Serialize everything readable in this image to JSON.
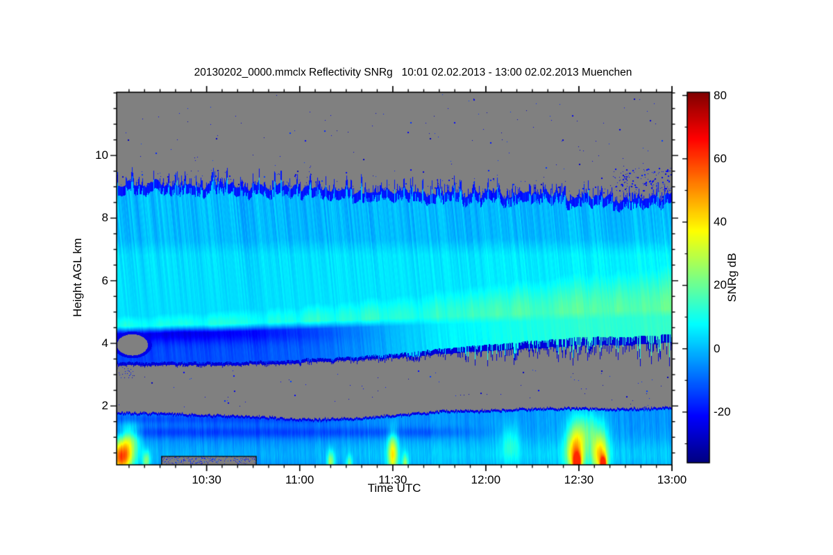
{
  "page": {
    "background": "#ffffff"
  },
  "chart_data": {
    "type": "heatmap",
    "title": "20130202_0000.mmclx Reflectivity SNRg   10:01 02.02.2013 - 13:00 02.02.2013 Muenchen",
    "file_label": "20130202_0000.mmclx",
    "quantity_label": "Reflectivity SNRg",
    "time_start_label": "10:01",
    "time_end_label": "13:00",
    "date_label": "02.02.2013",
    "site_label": "Muenchen",
    "xlabel": "Time UTC",
    "ylabel": "Height AGL km",
    "colorbar_label": "SNRg dB",
    "x_range_minutes": [
      0,
      179
    ],
    "x_ticks": [
      {
        "label": "10:30",
        "t": 29
      },
      {
        "label": "11:00",
        "t": 59
      },
      {
        "label": "11:30",
        "t": 89
      },
      {
        "label": "12:00",
        "t": 119
      },
      {
        "label": "12:30",
        "t": 149
      },
      {
        "label": "13:00",
        "t": 179
      }
    ],
    "x_minor_step_minutes": 5,
    "x_minor_offset_minutes": 4,
    "y_range_km": [
      0.12,
      12.02
    ],
    "y_ticks": [
      {
        "label": "2",
        "v": 2
      },
      {
        "label": "4",
        "v": 4
      },
      {
        "label": "6",
        "v": 6
      },
      {
        "label": "8",
        "v": 8
      },
      {
        "label": "10",
        "v": 10
      }
    ],
    "y_minor_step_km": 0.5,
    "value_range_db": [
      -36,
      81
    ],
    "colorbar_ticks": [
      {
        "label": "80",
        "v": 80
      },
      {
        "label": "60",
        "v": 60
      },
      {
        "label": "40",
        "v": 40
      },
      {
        "label": "20",
        "v": 20
      },
      {
        "label": "0",
        "v": 0
      },
      {
        "label": "-20",
        "v": -20
      }
    ],
    "colorbar_minor_step_db": 10,
    "colormap": "jet",
    "nodata_color": "#808080",
    "frame_color": "#000000",
    "upper_layer": {
      "times": [
        0,
        10,
        20,
        30,
        45,
        60,
        75,
        90,
        105,
        120,
        135,
        150,
        165,
        179
      ],
      "base_km": [
        3.3,
        3.28,
        3.3,
        3.3,
        3.32,
        3.38,
        3.45,
        3.55,
        3.65,
        3.75,
        3.85,
        3.95,
        3.95,
        4.0
      ],
      "base_ragged_km": [
        0.06,
        0.06,
        0.06,
        0.06,
        0.06,
        0.08,
        0.08,
        0.12,
        0.25,
        0.35,
        0.45,
        0.5,
        0.5,
        0.55
      ],
      "top_km": [
        9.05,
        9.1,
        9.05,
        9.0,
        9.0,
        8.95,
        8.9,
        8.85,
        8.8,
        8.8,
        8.75,
        8.7,
        8.6,
        8.7
      ],
      "top_jagged_km": 0.42,
      "base_zone_db": [
        -14,
        -14,
        -13,
        -13,
        -12,
        -10,
        -6,
        0,
        6,
        9,
        11,
        13,
        13,
        14
      ],
      "dark_wedge_db": [
        -9,
        -10,
        -11,
        -10,
        -8,
        -5,
        -2,
        0,
        0,
        0,
        0,
        0,
        0,
        0
      ],
      "dark_wedge_center_km": 4.32,
      "dark_wedge_width_km": 0.3,
      "band_db": [
        9,
        9,
        9,
        10,
        10,
        11,
        12,
        12,
        13,
        15,
        16,
        17,
        18,
        19
      ],
      "band_center_km": [
        4.55,
        4.55,
        4.6,
        4.6,
        4.65,
        4.7,
        4.75,
        4.8,
        4.85,
        4.9,
        4.95,
        5.0,
        5.05,
        5.1
      ],
      "band_width_km": [
        0.35,
        0.38,
        0.4,
        0.42,
        0.5,
        0.55,
        0.65,
        0.75,
        0.9,
        1.0,
        1.1,
        1.2,
        1.3,
        1.4
      ],
      "mid_db": [
        4,
        4,
        4,
        4,
        4,
        5,
        5,
        5,
        5,
        6,
        6,
        6,
        7,
        7
      ],
      "fade_start_km": 6.8,
      "top_db": -21,
      "base_edge_db": -26
    },
    "lower_layer": {
      "times": [
        0,
        15,
        30,
        45,
        60,
        75,
        90,
        105,
        120,
        135,
        150,
        165,
        179
      ],
      "top_km": [
        1.8,
        1.78,
        1.72,
        1.68,
        1.58,
        1.6,
        1.72,
        1.85,
        1.88,
        1.92,
        1.95,
        1.92,
        1.97
      ],
      "background_db": [
        -7,
        -7,
        -8,
        -8,
        -8,
        -6,
        -5,
        -4,
        -4,
        -3,
        -3,
        -4,
        -4
      ],
      "low_bright_db": 6,
      "low_bright_center_km": 0.45,
      "low_bright_width_km": 0.5,
      "dark_band1": {
        "center_km": 1.15,
        "width_km": 0.18,
        "db": -7,
        "t_end": 100
      },
      "dark_band2": {
        "center_km": 1.58,
        "width_km": 0.15,
        "db": -5,
        "t_end": 60
      },
      "top_edge_db": -24
    },
    "features": [
      {
        "t": 1.5,
        "h": 0.35,
        "st": 3.6,
        "sh": 0.5,
        "amp": 58
      },
      {
        "t": 4.0,
        "h": 0.95,
        "st": 3.2,
        "sh": 0.5,
        "amp": 26
      },
      {
        "t": 9.5,
        "h": 0.25,
        "st": 1.2,
        "sh": 0.3,
        "amp": 26
      },
      {
        "t": 69,
        "h": 0.2,
        "st": 1.2,
        "sh": 0.35,
        "amp": 28
      },
      {
        "t": 75,
        "h": 0.15,
        "st": 1.0,
        "sh": 0.25,
        "amp": 20
      },
      {
        "t": 89,
        "h": 0.45,
        "st": 1.6,
        "sh": 0.7,
        "amp": 40
      },
      {
        "t": 93,
        "h": 0.15,
        "st": 1.0,
        "sh": 0.3,
        "amp": 25
      },
      {
        "t": 127,
        "h": 0.8,
        "st": 3.0,
        "sh": 0.6,
        "amp": 12
      },
      {
        "t": 148,
        "h": 0.5,
        "st": 3.0,
        "sh": 0.8,
        "amp": 44
      },
      {
        "t": 148.5,
        "h": 0.15,
        "st": 1.2,
        "sh": 0.3,
        "amp": 58
      },
      {
        "t": 152,
        "h": 1.2,
        "st": 5.0,
        "sh": 0.6,
        "amp": 18
      },
      {
        "t": 156,
        "h": 0.4,
        "st": 2.5,
        "sh": 0.7,
        "amp": 42
      },
      {
        "t": 157,
        "h": 0.12,
        "st": 1.0,
        "sh": 0.25,
        "amp": 55
      }
    ],
    "speckles": {
      "gap": {
        "h_min": 1.95,
        "h_max": 3.15,
        "count": 80
      },
      "above": {
        "h_min": 9.5,
        "h_max": 11.95,
        "count": 110
      },
      "fringe_probability": 0.16,
      "top_right_patch": {
        "t_min": 160,
        "t_max": 179,
        "h_min": 8.85,
        "h_max": 9.6,
        "count": 130
      },
      "below_left": {
        "t_min": 0,
        "t_max": 6,
        "h_min": 2.9,
        "h_max": 3.25,
        "count": 25
      },
      "box_count": 220,
      "db_min": -30,
      "db_max": -14
    },
    "artifact_box": {
      "t0": 14.5,
      "t1": 45,
      "h_top": 0.39
    },
    "left_edge_hole": {
      "t": 5,
      "h": 3.95,
      "rt": 5.0,
      "rh": 0.34,
      "rim_db": -24
    }
  }
}
